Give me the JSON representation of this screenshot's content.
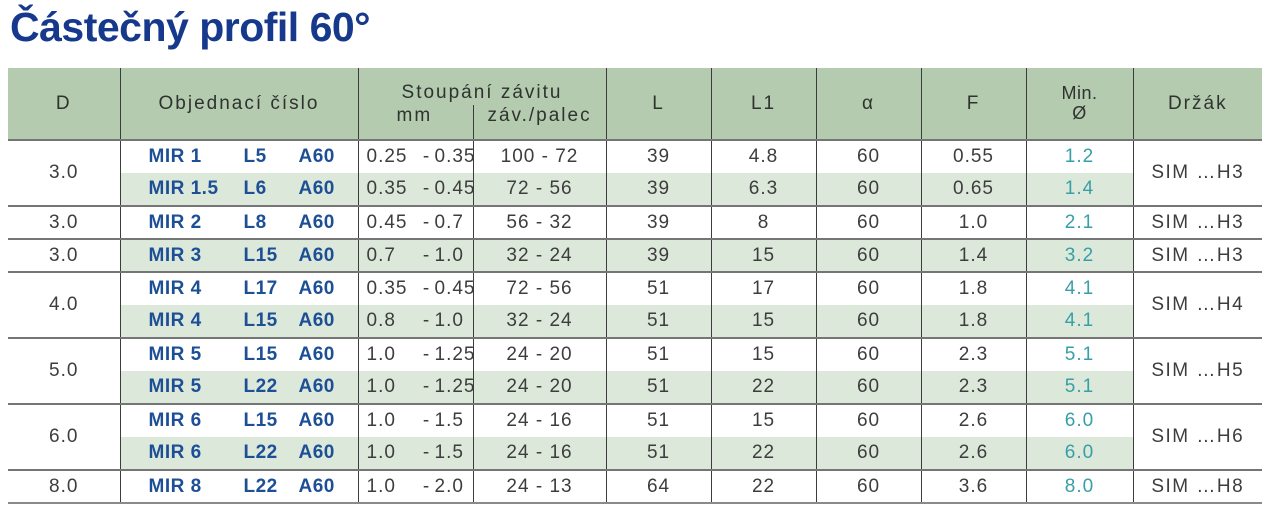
{
  "title": "Částečný profil 60°",
  "colors": {
    "title_blue": "#17398c",
    "code_blue": "#1d4f96",
    "header_green": "#b4cbb0",
    "row_shade_green": "#dce8d9",
    "min_diameter_teal": "#379fa6",
    "text_gray": "#3d3d3d"
  },
  "table": {
    "headers": {
      "d": "D",
      "order": "Objednací číslo",
      "pitch_group": "Stoupání závitu",
      "pitch_mm": "mm",
      "pitch_tpi": "záv./palec",
      "l": "L",
      "l1": "L1",
      "alpha": "α",
      "f": "F",
      "min_line1": "Min.",
      "min_line2": "Ø",
      "holder": "Držák"
    },
    "groups": [
      {
        "d": "3.0",
        "holder": "SIM …H3",
        "rows": [
          {
            "code": [
              "MIR 1",
              "L5",
              "A60"
            ],
            "mm": [
              "0.25",
              "0.35"
            ],
            "tpi": "100 - 72",
            "l": "39",
            "l1": "4.8",
            "alpha": "60",
            "f": "0.55",
            "min": "1.2",
            "shaded": false
          },
          {
            "code": [
              "MIR 1.5",
              "L6",
              "A60"
            ],
            "mm": [
              "0.35",
              "0.45"
            ],
            "tpi": "72 - 56",
            "l": "39",
            "l1": "6.3",
            "alpha": "60",
            "f": "0.65",
            "min": "1.4",
            "shaded": true
          }
        ]
      },
      {
        "d": "3.0",
        "holder": "SIM …H3",
        "rows": [
          {
            "code": [
              "MIR 2",
              "L8",
              "A60"
            ],
            "mm": [
              "0.45",
              "0.7"
            ],
            "tpi": "56 - 32",
            "l": "39",
            "l1": "8",
            "alpha": "60",
            "f": "1.0",
            "min": "2.1",
            "shaded": false
          }
        ]
      },
      {
        "d": "3.0",
        "holder": "SIM …H3",
        "rows": [
          {
            "code": [
              "MIR 3",
              "L15",
              "A60"
            ],
            "mm": [
              "0.7",
              "1.0"
            ],
            "tpi": "32 - 24",
            "l": "39",
            "l1": "15",
            "alpha": "60",
            "f": "1.4",
            "min": "3.2",
            "shaded": true
          }
        ]
      },
      {
        "d": "4.0",
        "holder": "SIM …H4",
        "rows": [
          {
            "code": [
              "MIR 4",
              "L17",
              "A60"
            ],
            "mm": [
              "0.35",
              "0.45"
            ],
            "tpi": "72 - 56",
            "l": "51",
            "l1": "17",
            "alpha": "60",
            "f": "1.8",
            "min": "4.1",
            "shaded": false
          },
          {
            "code": [
              "MIR 4",
              "L15",
              "A60"
            ],
            "mm": [
              "0.8",
              "1.0"
            ],
            "tpi": "32 - 24",
            "l": "51",
            "l1": "15",
            "alpha": "60",
            "f": "1.8",
            "min": "4.1",
            "shaded": true
          }
        ]
      },
      {
        "d": "5.0",
        "holder": "SIM …H5",
        "rows": [
          {
            "code": [
              "MIR 5",
              "L15",
              "A60"
            ],
            "mm": [
              "1.0",
              "1.25"
            ],
            "tpi": "24 - 20",
            "l": "51",
            "l1": "15",
            "alpha": "60",
            "f": "2.3",
            "min": "5.1",
            "shaded": false
          },
          {
            "code": [
              "MIR 5",
              "L22",
              "A60"
            ],
            "mm": [
              "1.0",
              "1.25"
            ],
            "tpi": "24 - 20",
            "l": "51",
            "l1": "22",
            "alpha": "60",
            "f": "2.3",
            "min": "5.1",
            "shaded": true
          }
        ]
      },
      {
        "d": "6.0",
        "holder": "SIM …H6",
        "rows": [
          {
            "code": [
              "MIR 6",
              "L15",
              "A60"
            ],
            "mm": [
              "1.0",
              "1.5"
            ],
            "tpi": "24 - 16",
            "l": "51",
            "l1": "15",
            "alpha": "60",
            "f": "2.6",
            "min": "6.0",
            "shaded": false
          },
          {
            "code": [
              "MIR 6",
              "L22",
              "A60"
            ],
            "mm": [
              "1.0",
              "1.5"
            ],
            "tpi": "24 - 16",
            "l": "51",
            "l1": "22",
            "alpha": "60",
            "f": "2.6",
            "min": "6.0",
            "shaded": true
          }
        ]
      },
      {
        "d": "8.0",
        "holder": "SIM …H8",
        "rows": [
          {
            "code": [
              "MIR 8",
              "L22",
              "A60"
            ],
            "mm": [
              "1.0",
              "2.0"
            ],
            "tpi": "24 - 13",
            "l": "64",
            "l1": "22",
            "alpha": "60",
            "f": "3.6",
            "min": "8.0",
            "shaded": false
          }
        ]
      }
    ]
  }
}
